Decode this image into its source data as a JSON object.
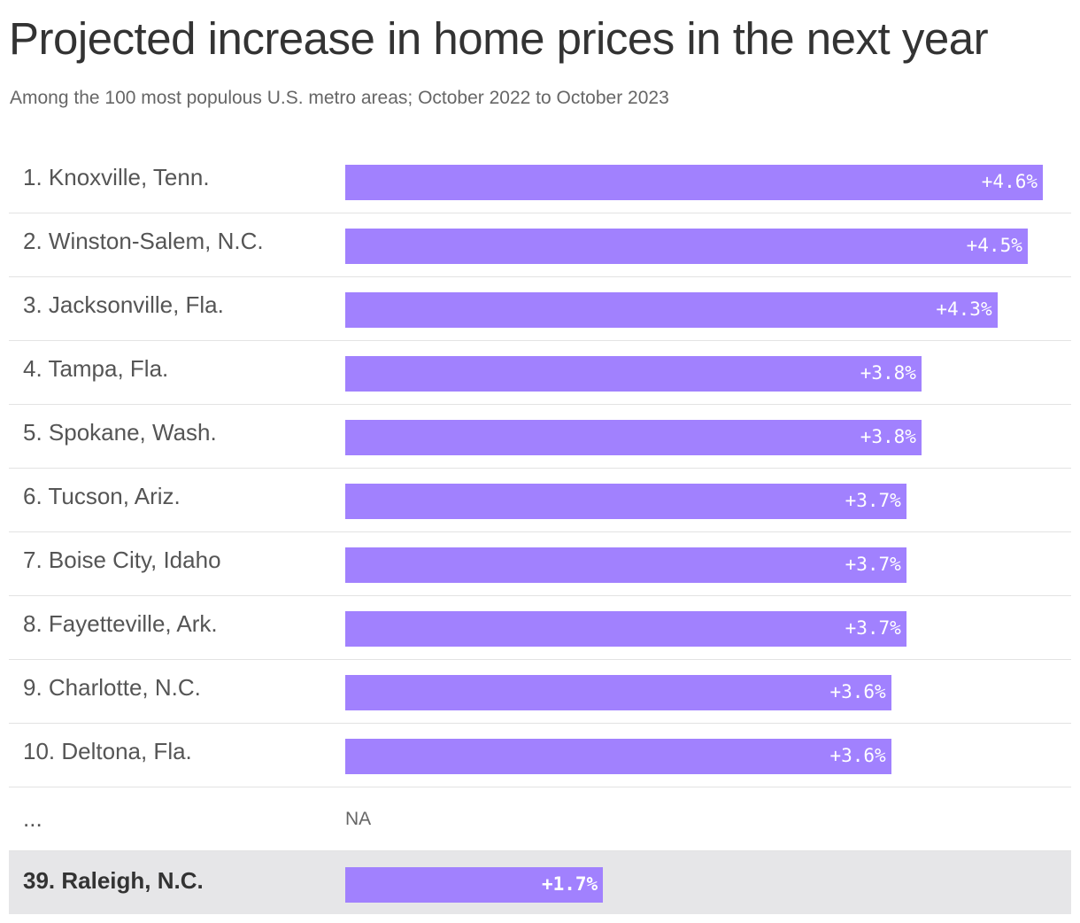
{
  "chart_data": {
    "type": "bar",
    "orientation": "horizontal",
    "title": "Projected increase in home prices in the next year",
    "subtitle": "Among the 100 most populous U.S. metro areas; October 2022 to October 2023",
    "xlim": [
      0,
      4.6
    ],
    "bar_color": "#a181fe",
    "highlight_color": "#e6e6e8",
    "rows": [
      {
        "label": "1. Knoxville, Tenn.",
        "value": 4.6,
        "value_label": "+4.6%"
      },
      {
        "label": "2. Winston-Salem, N.C.",
        "value": 4.5,
        "value_label": "+4.5%"
      },
      {
        "label": "3. Jacksonville, Fla.",
        "value": 4.3,
        "value_label": "+4.3%"
      },
      {
        "label": "4. Tampa, Fla.",
        "value": 3.8,
        "value_label": "+3.8%"
      },
      {
        "label": "5. Spokane, Wash.",
        "value": 3.8,
        "value_label": "+3.8%"
      },
      {
        "label": "6. Tucson, Ariz.",
        "value": 3.7,
        "value_label": "+3.7%"
      },
      {
        "label": "7. Boise City, Idaho",
        "value": 3.7,
        "value_label": "+3.7%"
      },
      {
        "label": "8. Fayetteville, Ark.",
        "value": 3.7,
        "value_label": "+3.7%"
      },
      {
        "label": "9. Charlotte, N.C.",
        "value": 3.6,
        "value_label": "+3.6%"
      },
      {
        "label": "10. Deltona, Fla.",
        "value": 3.6,
        "value_label": "+3.6%"
      }
    ],
    "gap_row": {
      "label": "...",
      "value_label": "NA"
    },
    "highlight_row": {
      "label": "39. Raleigh, N.C.",
      "value": 1.7,
      "value_label": "+1.7%"
    }
  }
}
